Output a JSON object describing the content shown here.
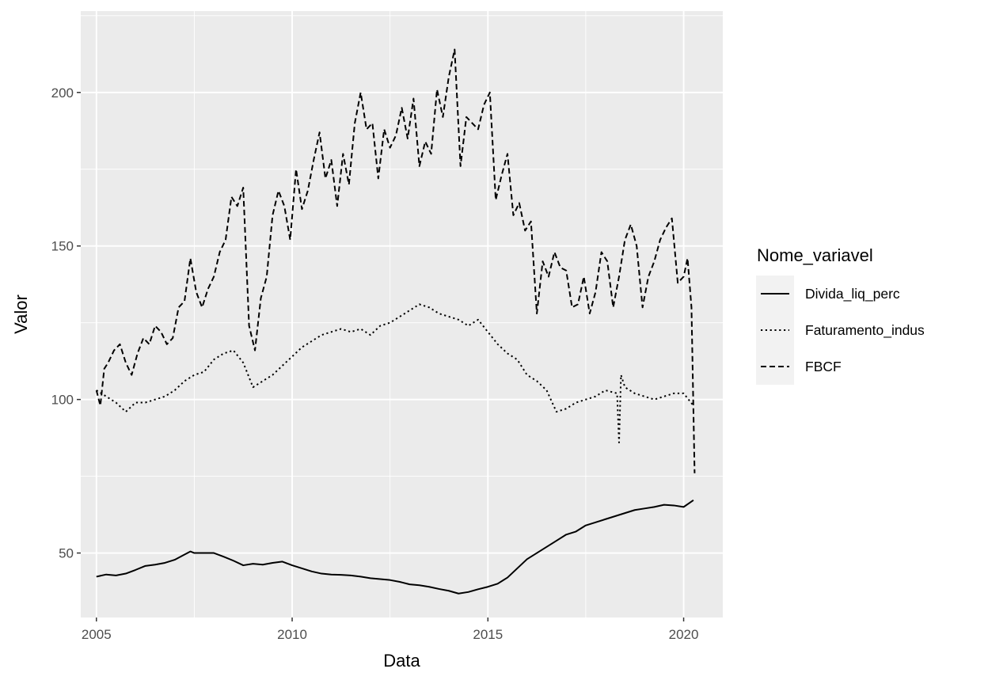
{
  "chart_data": {
    "type": "line",
    "title": "",
    "xlabel": "Data",
    "ylabel": "Valor",
    "xlim": [
      2004.6,
      2021.0
    ],
    "ylim": [
      29.0,
      226.5
    ],
    "x_ticks": [
      2005,
      2010,
      2015,
      2020
    ],
    "x_tick_labels": [
      "2005",
      "2010",
      "2015",
      "2020"
    ],
    "y_ticks": [
      50,
      100,
      150,
      200
    ],
    "y_tick_labels": [
      "50",
      "100",
      "150",
      "200"
    ],
    "grid": true,
    "legend": {
      "title": "Nome_variavel",
      "position": "right",
      "entries": [
        "Divida_liq_perc",
        "Faturamento_indus",
        "FBCF"
      ]
    },
    "colors": {
      "panel": "#EBEBEB",
      "grid": "#FFFFFF",
      "line": "#000000",
      "legend_key": "#F2F2F2",
      "tick": "#333333"
    },
    "series": [
      {
        "name": "Divida_liq_perc",
        "linetype": "solid",
        "x": [
          2005.0,
          2005.25,
          2005.5,
          2005.75,
          2006.0,
          2006.25,
          2006.5,
          2006.75,
          2007.0,
          2007.25,
          2007.4,
          2007.5,
          2007.75,
          2008.0,
          2008.25,
          2008.5,
          2008.75,
          2009.0,
          2009.25,
          2009.5,
          2009.75,
          2010.0,
          2010.25,
          2010.5,
          2010.75,
          2011.0,
          2011.25,
          2011.5,
          2011.75,
          2012.0,
          2012.25,
          2012.5,
          2012.75,
          2013.0,
          2013.25,
          2013.5,
          2013.75,
          2014.0,
          2014.25,
          2014.5,
          2014.75,
          2015.0,
          2015.25,
          2015.5,
          2015.75,
          2016.0,
          2016.25,
          2016.5,
          2016.75,
          2017.0,
          2017.25,
          2017.5,
          2017.75,
          2018.0,
          2018.25,
          2018.5,
          2018.75,
          2019.0,
          2019.25,
          2019.5,
          2019.75,
          2020.0,
          2020.25
        ],
        "y": [
          42.3,
          43.0,
          42.7,
          43.3,
          44.5,
          45.8,
          46.2,
          46.8,
          47.8,
          49.5,
          50.5,
          50.0,
          50.0,
          50.0,
          48.8,
          47.5,
          46.0,
          46.5,
          46.2,
          46.8,
          47.2,
          46.0,
          45.0,
          44.0,
          43.3,
          43.0,
          42.9,
          42.7,
          42.3,
          41.8,
          41.5,
          41.2,
          40.6,
          39.8,
          39.5,
          39.0,
          38.3,
          37.7,
          36.8,
          37.3,
          38.2,
          39.0,
          40.0,
          42.0,
          45.0,
          48.0,
          50.0,
          52.0,
          54.0,
          56.0,
          57.0,
          59.0,
          60.0,
          61.0,
          62.0,
          63.0,
          64.0,
          64.5,
          65.0,
          65.7,
          65.5,
          65.0,
          67.2
        ]
      },
      {
        "name": "Faturamento_indus",
        "linetype": "dotted",
        "x": [
          2005.0,
          2005.25,
          2005.5,
          2005.75,
          2006.0,
          2006.25,
          2006.5,
          2006.75,
          2007.0,
          2007.25,
          2007.5,
          2007.75,
          2008.0,
          2008.25,
          2008.5,
          2008.75,
          2009.0,
          2009.25,
          2009.5,
          2009.75,
          2010.0,
          2010.25,
          2010.5,
          2010.75,
          2011.0,
          2011.25,
          2011.5,
          2011.75,
          2012.0,
          2012.25,
          2012.5,
          2012.75,
          2013.0,
          2013.25,
          2013.5,
          2013.75,
          2014.0,
          2014.25,
          2014.5,
          2014.75,
          2015.0,
          2015.25,
          2015.5,
          2015.75,
          2016.0,
          2016.25,
          2016.5,
          2016.75,
          2017.0,
          2017.25,
          2017.5,
          2017.75,
          2018.0,
          2018.3,
          2018.35,
          2018.4,
          2018.5,
          2018.75,
          2019.0,
          2019.25,
          2019.5,
          2019.75,
          2020.0,
          2020.25
        ],
        "y": [
          103,
          101,
          99,
          96,
          99,
          99,
          100,
          101,
          103,
          106,
          108,
          109,
          113,
          115,
          116,
          112,
          104,
          106,
          108,
          111,
          114,
          117,
          119,
          121,
          122,
          123,
          122,
          123,
          121,
          124,
          125,
          127,
          129,
          131,
          130,
          128,
          127,
          126,
          124,
          126,
          122,
          118,
          115,
          113,
          108,
          106,
          103,
          96,
          97,
          99,
          100,
          101,
          103,
          102,
          86,
          108,
          104,
          102,
          101,
          100,
          101,
          102,
          102,
          98
        ]
      },
      {
        "name": "FBCF",
        "linetype": "dashed",
        "x": [
          2005.0,
          2005.1,
          2005.2,
          2005.3,
          2005.45,
          2005.6,
          2005.75,
          2005.9,
          2006.05,
          2006.2,
          2006.35,
          2006.5,
          2006.65,
          2006.8,
          2006.95,
          2007.1,
          2007.25,
          2007.4,
          2007.55,
          2007.7,
          2007.85,
          2008.0,
          2008.15,
          2008.3,
          2008.45,
          2008.6,
          2008.75,
          2008.9,
          2009.05,
          2009.2,
          2009.35,
          2009.5,
          2009.65,
          2009.8,
          2009.95,
          2010.1,
          2010.25,
          2010.4,
          2010.55,
          2010.7,
          2010.85,
          2011.0,
          2011.15,
          2011.3,
          2011.45,
          2011.6,
          2011.75,
          2011.9,
          2012.05,
          2012.2,
          2012.35,
          2012.5,
          2012.65,
          2012.8,
          2012.95,
          2013.1,
          2013.25,
          2013.4,
          2013.55,
          2013.7,
          2013.85,
          2014.0,
          2014.15,
          2014.3,
          2014.45,
          2014.6,
          2014.75,
          2014.9,
          2015.05,
          2015.2,
          2015.35,
          2015.5,
          2015.65,
          2015.8,
          2015.95,
          2016.1,
          2016.25,
          2016.4,
          2016.55,
          2016.7,
          2016.85,
          2017.0,
          2017.15,
          2017.3,
          2017.45,
          2017.6,
          2017.75,
          2017.9,
          2018.05,
          2018.2,
          2018.35,
          2018.5,
          2018.65,
          2018.8,
          2018.95,
          2019.1,
          2019.25,
          2019.4,
          2019.55,
          2019.7,
          2019.85,
          2020.0,
          2020.1,
          2020.2,
          2020.28
        ],
        "y": [
          103,
          98,
          110,
          112,
          116,
          118,
          112,
          108,
          115,
          120,
          118,
          124,
          122,
          118,
          120,
          130,
          132,
          146,
          135,
          130,
          136,
          140,
          148,
          152,
          166,
          163,
          169,
          124,
          116,
          133,
          140,
          160,
          168,
          163,
          152,
          175,
          162,
          168,
          178,
          187,
          172,
          178,
          163,
          180,
          170,
          190,
          200,
          188,
          190,
          172,
          188,
          182,
          186,
          195,
          185,
          198,
          176,
          184,
          180,
          201,
          192,
          205,
          214,
          176,
          192,
          190,
          188,
          196,
          200,
          165,
          173,
          180,
          160,
          164,
          155,
          158,
          128,
          145,
          140,
          148,
          143,
          142,
          130,
          131,
          140,
          128,
          135,
          148,
          145,
          130,
          140,
          152,
          157,
          150,
          130,
          140,
          145,
          152,
          156,
          159,
          138,
          140,
          146,
          130,
          76
        ]
      }
    ]
  }
}
